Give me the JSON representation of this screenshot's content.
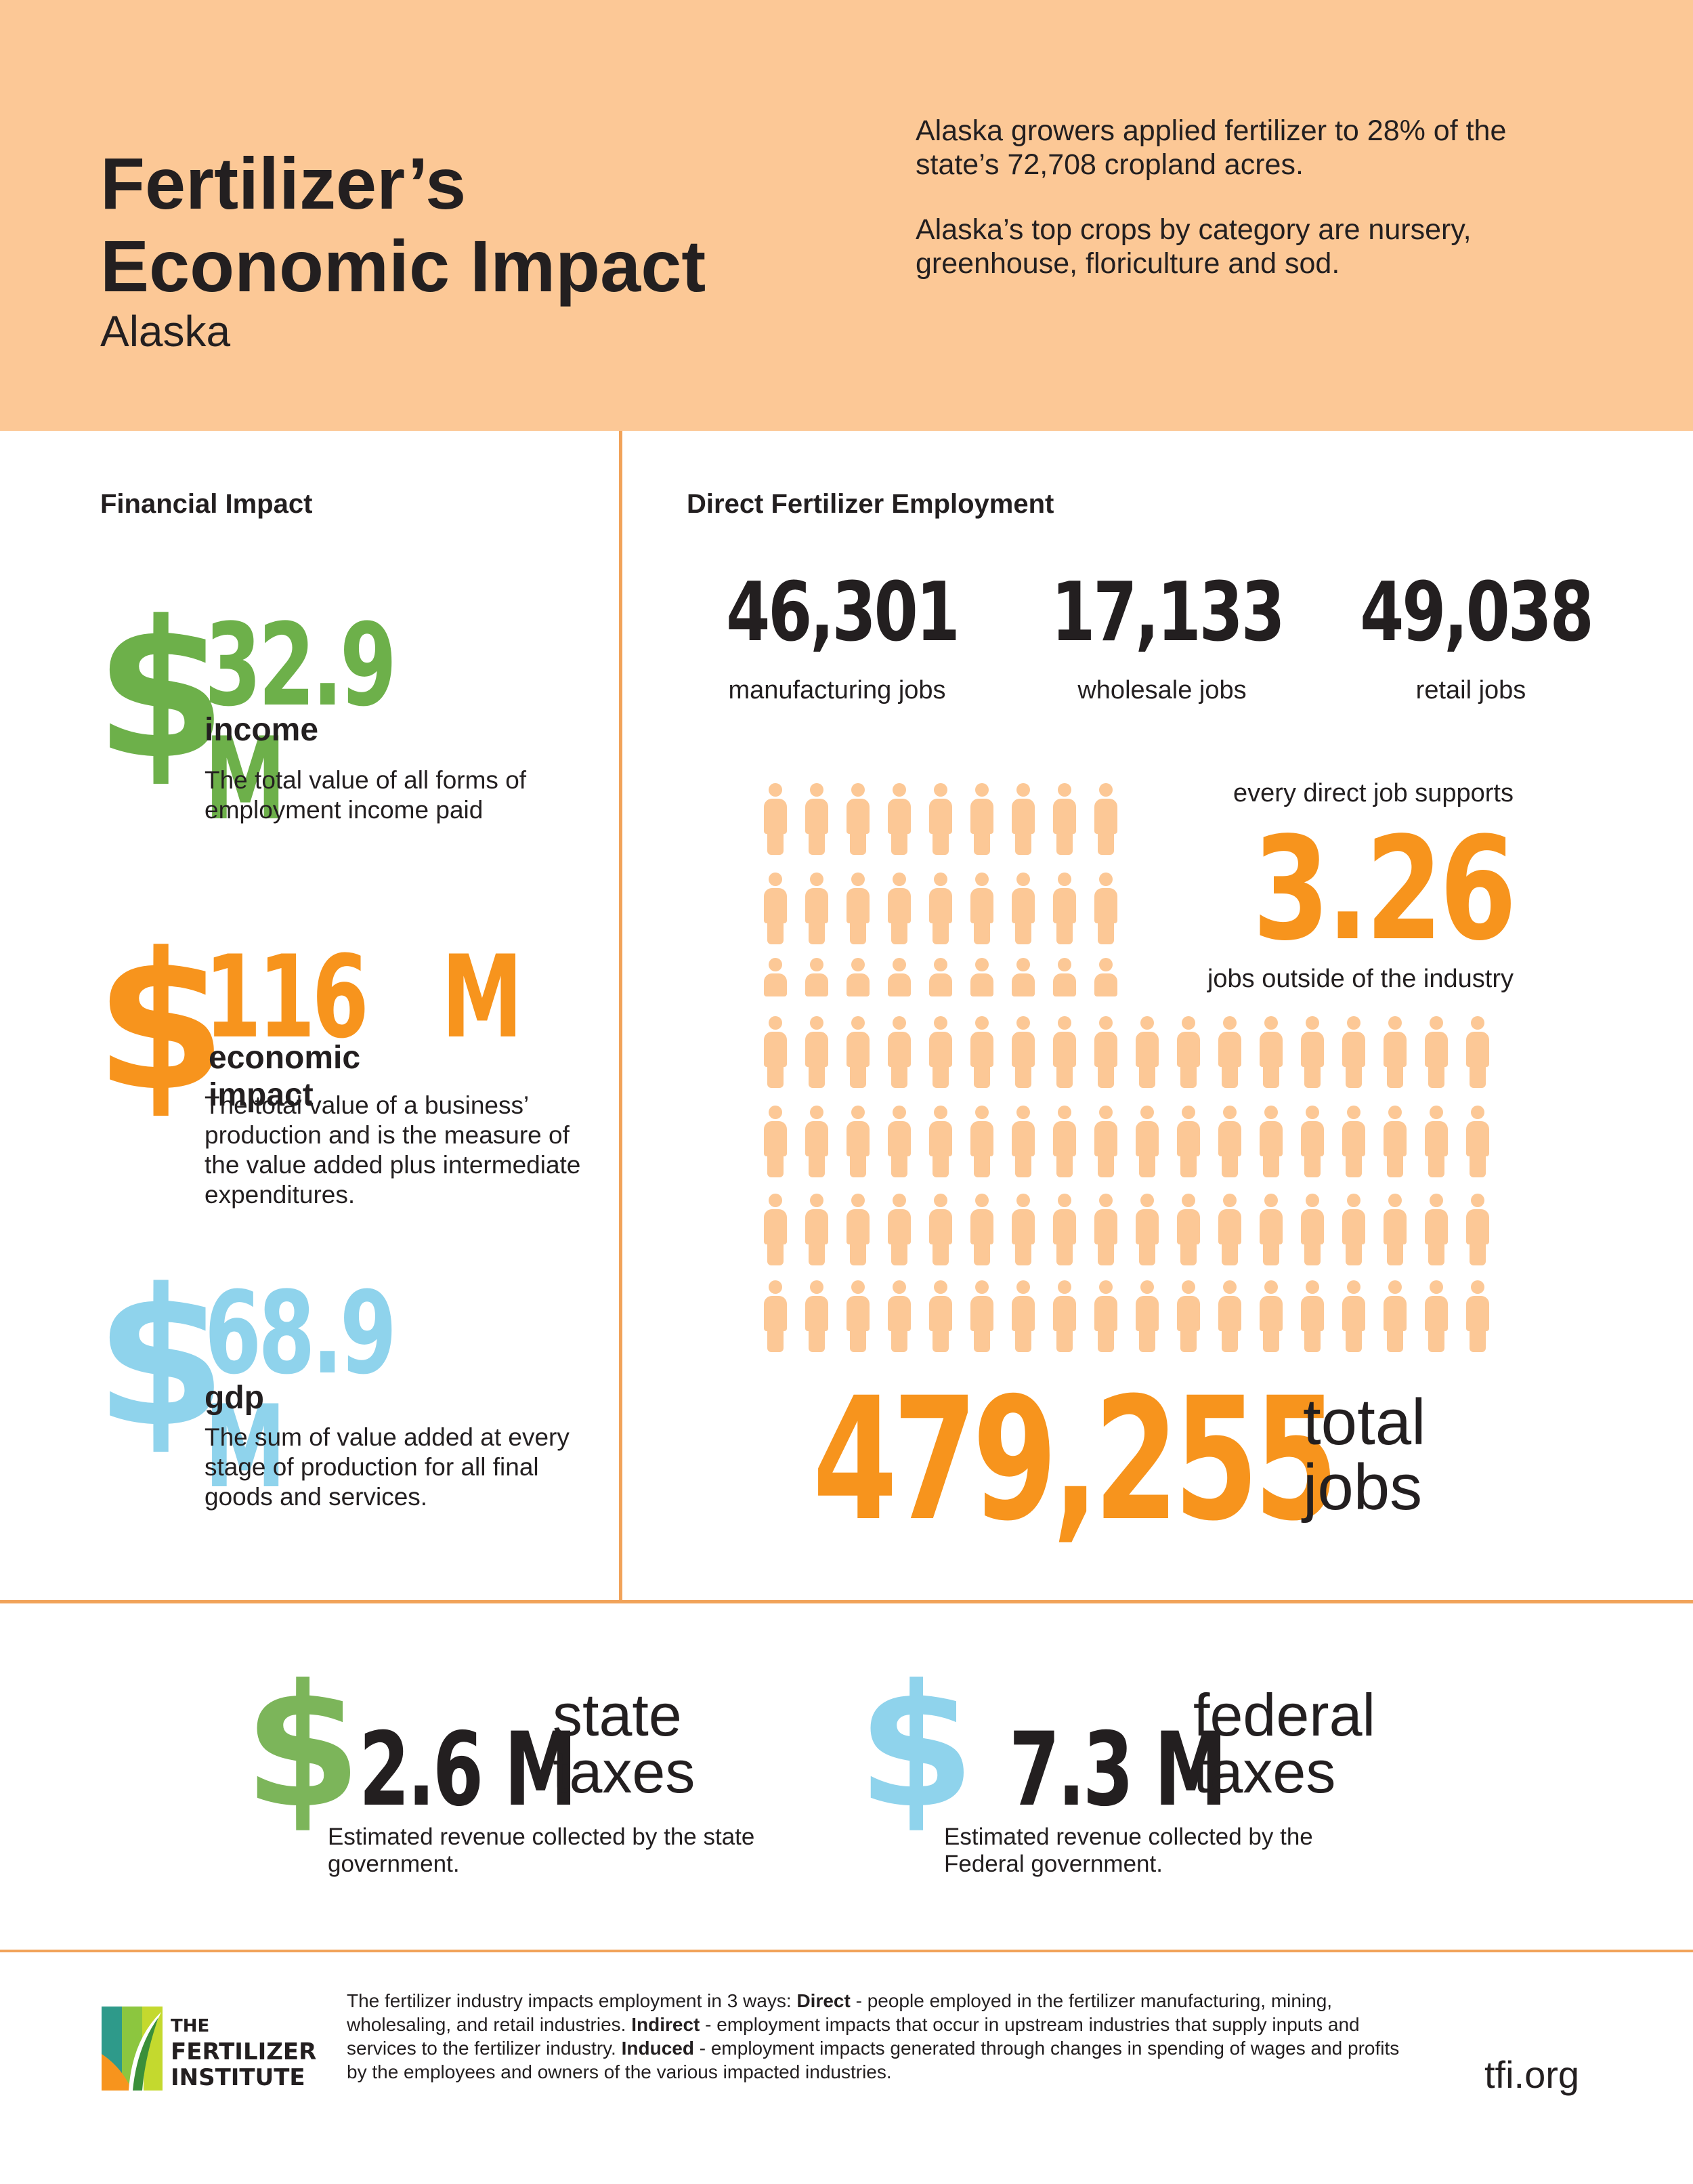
{
  "header": {
    "title_line1": "Fertilizer’s",
    "title_line2": "Economic Impact",
    "state": "Alaska",
    "intro1": "Alaska growers applied fertilizer to 28% of the state’s 72,708 cropland acres.",
    "intro2": "Alaska’s top crops by category are nursery, greenhouse, floriculture and sod."
  },
  "financial": {
    "title": "Financial Impact",
    "items": [
      {
        "symbol": "$",
        "value": "32.9 M",
        "label": "income",
        "desc": "The total value of all forms of employment income paid",
        "color": "#6db04a"
      },
      {
        "symbol": "$",
        "value": "116   M",
        "label": "economic impact",
        "desc": "The total value of a business’ production and is the measure of the value added plus intermediate expenditures.",
        "color": "#f7941d"
      },
      {
        "symbol": "$",
        "value": "68.9 M",
        "label": "gdp",
        "desc": "The sum of value added at every stage of production for all final goods and services.",
        "color": "#8fd3ec"
      }
    ]
  },
  "employment": {
    "title": "Direct Fertilizer Employment",
    "jobs": [
      {
        "value": "46,301",
        "label": "manufacturing jobs"
      },
      {
        "value": "17,133",
        "label": "wholesale jobs"
      },
      {
        "value": "49,038",
        "label": "retail jobs"
      }
    ],
    "supports_text": "every direct job supports",
    "multiplier": "3.26",
    "outside_text": "jobs outside of the industry",
    "total_value": "479,255",
    "total_label_line1": "total",
    "total_label_line2": "jobs",
    "icon": "person-icon",
    "icon_color": "#fcc896"
  },
  "taxes": [
    {
      "symbol": "$",
      "value": "2.6 M",
      "word1": "state",
      "word2": "taxes",
      "desc": "Estimated revenue collected by the state government.",
      "color": "#7cb55a"
    },
    {
      "symbol": "$",
      "value": "7.3 M",
      "word1": "federal",
      "word2": "taxes",
      "desc": "Estimated revenue collected by the Federal government.",
      "color": "#8fd3ec"
    }
  ],
  "footer": {
    "intro": "The fertilizer industry impacts employment in 3 ways: ",
    "direct_label": "Direct",
    "direct_text": " - people employed in the fertilizer manufacturing, mining, wholesaling, and retail industries. ",
    "indirect_label": "Indirect",
    "indirect_text": " - employment impacts that occur in upstream industries that supply inputs and services to the fertilizer industry. ",
    "induced_label": "Induced",
    "induced_text": " - employment impacts generated through changes in spending of wages and profits by the employees and owners of the various impacted industries.",
    "site": "tfi.org",
    "logo_line1": "THE",
    "logo_line2": "FERTILIZER",
    "logo_line3": "INSTITUTE"
  }
}
